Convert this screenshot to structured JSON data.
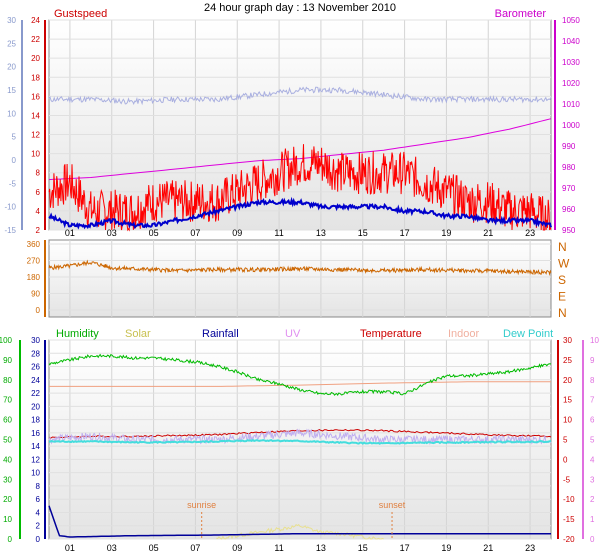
{
  "chart_data": {
    "type": "line",
    "title": "24 hour graph day : 13 November 2010",
    "x_tick_labels": [
      "01",
      "03",
      "05",
      "07",
      "09",
      "11",
      "13",
      "15",
      "17",
      "19",
      "21",
      "23"
    ],
    "panels": [
      {
        "name": "top",
        "legend": {
          "gustspeed": "Gustspeed",
          "barometer": "Barometer"
        },
        "left_axis_blue": {
          "ticks": [
            -15,
            -10,
            -5,
            0,
            5,
            10,
            15,
            20,
            25,
            30
          ],
          "ylim": [
            -15,
            30
          ]
        },
        "left_axis_red": {
          "ticks": [
            2,
            4,
            6,
            8,
            10,
            12,
            14,
            16,
            18,
            20,
            22,
            24
          ],
          "ylim": [
            2,
            24
          ]
        },
        "right_axis": {
          "ticks": [
            950,
            960,
            970,
            980,
            990,
            1000,
            1010,
            1020,
            1030,
            1040,
            1050
          ],
          "ylim": [
            950,
            1050
          ]
        },
        "series": [
          {
            "name": "Gustspeed",
            "color": "#ff0000",
            "x": [
              0,
              1,
              2,
              3,
              4,
              5,
              6,
              7,
              8,
              9,
              10,
              11,
              12,
              13,
              14,
              15,
              16,
              17,
              18,
              19,
              20,
              21,
              22,
              23,
              24
            ],
            "y": [
              6,
              7,
              4,
              4,
              4,
              5,
              5,
              5,
              5,
              6,
              7,
              8,
              9,
              9,
              8,
              8,
              8,
              8,
              7,
              6,
              5,
              5,
              4,
              4,
              3
            ]
          },
          {
            "name": "Barometer",
            "color": "#dd00dd",
            "x": [
              0,
              2,
              4,
              6,
              8,
              10,
              12,
              14,
              16,
              18,
              20,
              22,
              24
            ],
            "y": [
              974,
              975,
              977,
              979,
              981,
              983,
              984,
              986,
              988,
              991,
              994,
              998,
              1003
            ]
          },
          {
            "color": "#0000cc",
            "x": [
              0,
              1,
              2,
              3,
              4,
              5,
              6,
              7,
              8,
              9,
              10,
              11,
              12,
              13,
              14,
              15,
              16,
              17,
              18,
              19,
              20,
              21,
              22,
              23,
              24
            ],
            "y": [
              -12,
              -14,
              -14,
              -13,
              -14,
              -14,
              -13,
              -12,
              -11,
              -10,
              -9,
              -9,
              -9,
              -10,
              -10,
              -10,
              -10,
              -11,
              -11,
              -12,
              -12,
              -13,
              -13,
              -13,
              -14
            ]
          },
          {
            "color": "#aab0e0",
            "x": [
              0,
              2,
              4,
              6,
              8,
              10,
              12,
              14,
              16,
              18,
              20,
              22,
              24
            ],
            "y": [
              13,
              13,
              12.5,
              13,
              13,
              14,
              15,
              15,
              14,
              13,
              13,
              13,
              13
            ]
          }
        ]
      },
      {
        "name": "wind-direction",
        "left_axis": {
          "ticks": [
            0,
            90,
            180,
            270,
            360
          ],
          "ylim": [
            0,
            360
          ]
        },
        "compass_labels": [
          "N",
          "W",
          "S",
          "E",
          "N"
        ],
        "series": [
          {
            "color": "#cc6600",
            "x": [
              0,
              1,
              2,
              3,
              4,
              5,
              6,
              8,
              10,
              12,
              14,
              16,
              18,
              20,
              22,
              24
            ],
            "y": [
              230,
              240,
              260,
              230,
              225,
              220,
              215,
              220,
              220,
              225,
              220,
              215,
              220,
              215,
              210,
              205
            ]
          }
        ]
      },
      {
        "name": "bottom",
        "legend": {
          "humidity": "Humidity",
          "solar": "Solar",
          "rainfall": "Rainfall",
          "uv": "UV",
          "temperature": "Temperature",
          "indoor": "Indoor",
          "dew_point": "Dew Point"
        },
        "left_axis_green": {
          "ticks": [
            0,
            10,
            20,
            30,
            40,
            50,
            60,
            70,
            80,
            90,
            100
          ],
          "ylim": [
            0,
            100
          ]
        },
        "left_axis_blue": {
          "ticks": [
            0,
            2,
            4,
            6,
            8,
            10,
            12,
            14,
            16,
            18,
            20,
            22,
            24,
            26,
            28,
            30
          ],
          "ylim": [
            0,
            30
          ]
        },
        "right_axis_red": {
          "ticks": [
            -20,
            -15,
            -10,
            -5,
            0,
            5,
            10,
            15,
            20,
            25,
            30
          ],
          "ylim": [
            -20,
            30
          ]
        },
        "right_axis_pink": {
          "ticks": [
            0,
            1,
            2,
            3,
            4,
            5,
            6,
            7,
            8,
            9,
            10
          ],
          "ylim": [
            0,
            10
          ]
        },
        "annotations": {
          "sunrise": "sunrise",
          "sunset": "sunset",
          "sunrise_hour": 7.3,
          "sunset_hour": 16.4
        },
        "series": [
          {
            "name": "Humidity",
            "color": "#00bb00",
            "x": [
              0,
              1,
              2,
              3,
              4,
              5,
              6,
              7,
              8,
              9,
              10,
              11,
              12,
              13,
              14,
              15,
              16,
              17,
              18,
              19,
              20,
              21,
              22,
              23,
              24
            ],
            "y": [
              88,
              90,
              92,
              92,
              91,
              91,
              90,
              89,
              87,
              84,
              80,
              78,
              75,
              73,
              73,
              74,
              74,
              73,
              78,
              82,
              82,
              83,
              84,
              86,
              88
            ]
          },
          {
            "name": "Indoor",
            "color": "#f0a080",
            "x": [
              0,
              4,
              8,
              12,
              16,
              20,
              24
            ],
            "y": [
              23,
              23,
              23,
              23.2,
              23.5,
              23.7,
              23.7
            ]
          },
          {
            "name": "Temperature",
            "color": "#cc0000",
            "x": [
              0,
              2,
              4,
              6,
              8,
              10,
              12,
              14,
              16,
              18,
              20,
              22,
              24
            ],
            "y": [
              5.5,
              5.8,
              5.8,
              6,
              6.2,
              6.8,
              7.2,
              7.4,
              7.2,
              6.8,
              6.4,
              6,
              5.8
            ]
          },
          {
            "name": "UV",
            "color": "#c0b0f0",
            "x": [
              0,
              2,
              4,
              6,
              8,
              10,
              12,
              14,
              16,
              18,
              20,
              22,
              24
            ],
            "y": [
              15,
              15.5,
              15,
              15,
              15,
              15.5,
              16,
              15.5,
              15,
              15,
              15,
              15,
              15
            ]
          },
          {
            "name": "Dew Point",
            "color": "#44dddd",
            "x": [
              0,
              2,
              4,
              6,
              8,
              10,
              12,
              14,
              16,
              18,
              20,
              22,
              24
            ],
            "y": [
              4.5,
              4.5,
              4.3,
              4.3,
              4.5,
              4.8,
              4.6,
              4.2,
              4.0,
              4.2,
              4.3,
              4.4,
              4.5
            ]
          },
          {
            "name": "Rainfall",
            "color": "#000099",
            "x": [
              0,
              0.5,
              1,
              4,
              8,
              12,
              16,
              20,
              24
            ],
            "y": [
              5,
              0.5,
              0.3,
              0.5,
              0.6,
              0.8,
              0.8,
              0.8,
              0.8
            ]
          },
          {
            "name": "Solar",
            "color": "#e8e090",
            "x": [
              8,
              9,
              10,
              11,
              12,
              13,
              14,
              15,
              16
            ],
            "y": [
              0,
              0.5,
              1,
              1.5,
              2,
              1,
              0.8,
              0.3,
              0
            ]
          }
        ]
      }
    ]
  }
}
